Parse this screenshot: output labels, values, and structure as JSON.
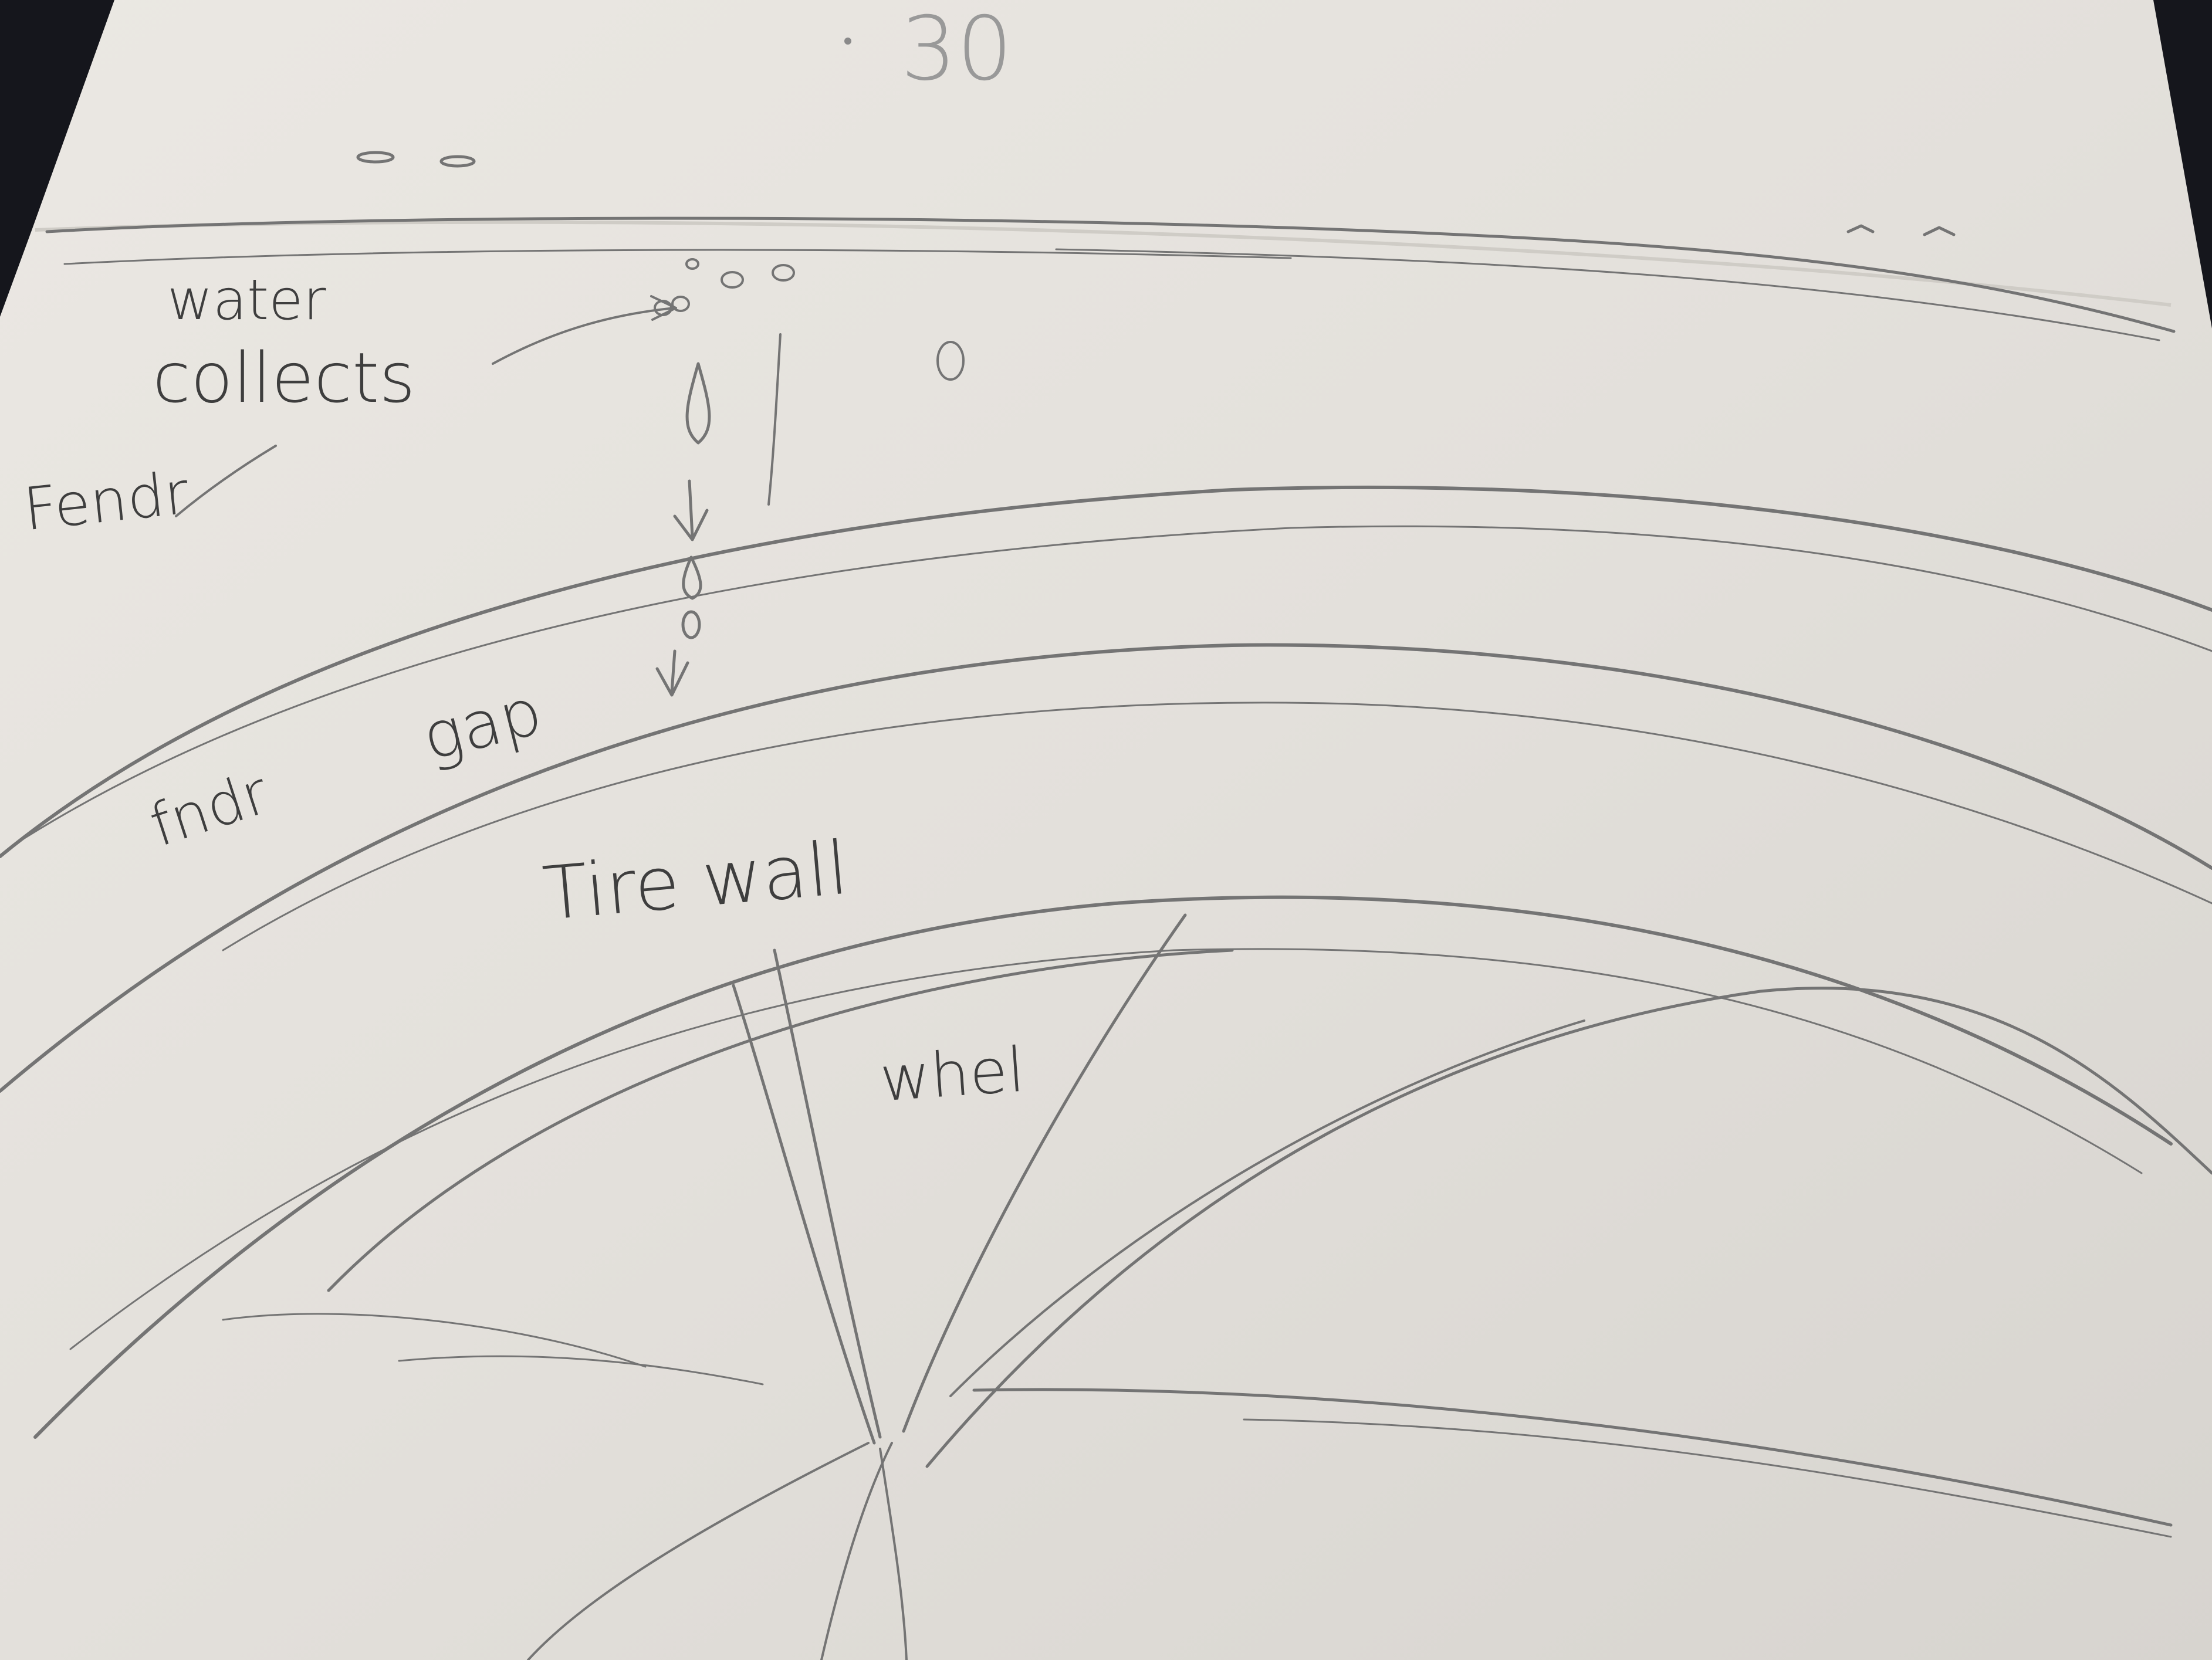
{
  "sketch": {
    "page_number": "30",
    "labels": {
      "water": "water",
      "collects": "collects",
      "fender_top": "Fendr",
      "fender_lower": "fndr",
      "gap": "gap",
      "tire_wall": "Tire wall",
      "wheel": "whel"
    }
  },
  "colors": {
    "background": "#15161c",
    "paper": "#e4e1dc",
    "pencil": "#6f6f6f"
  }
}
